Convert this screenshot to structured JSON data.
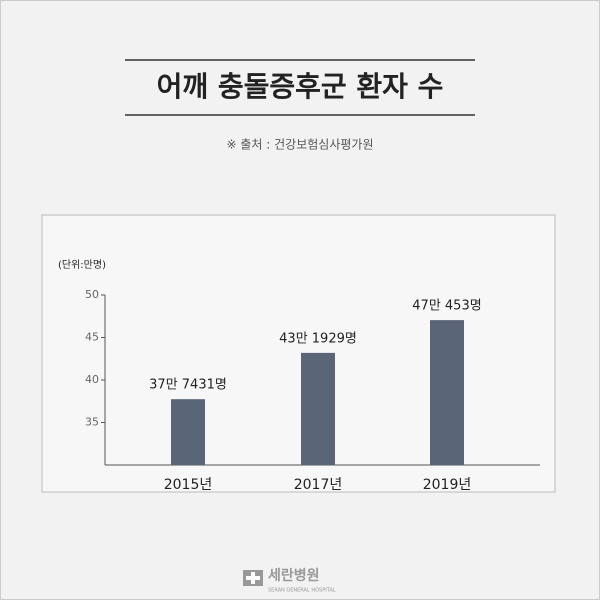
{
  "chart_data": {
    "type": "bar",
    "title": "어깨 충돌증후군 환자 수",
    "subtitle": "※ 출처 : 건강보험심사평가원",
    "unit_label": "(단위:만명)",
    "categories": [
      "2015년",
      "2017년",
      "2019년"
    ],
    "values": [
      37.7431,
      43.1929,
      47.0453
    ],
    "value_labels": [
      "37만 7431명",
      "43만 1929명",
      "47만 453명"
    ],
    "color": "#5a6678",
    "ylim": [
      30,
      50
    ],
    "yticks": [
      35,
      40,
      45,
      50
    ],
    "grid": false
  },
  "footer": {
    "name": "세란병원",
    "name_en": "SERAN GENERAL HOSPITAL"
  }
}
